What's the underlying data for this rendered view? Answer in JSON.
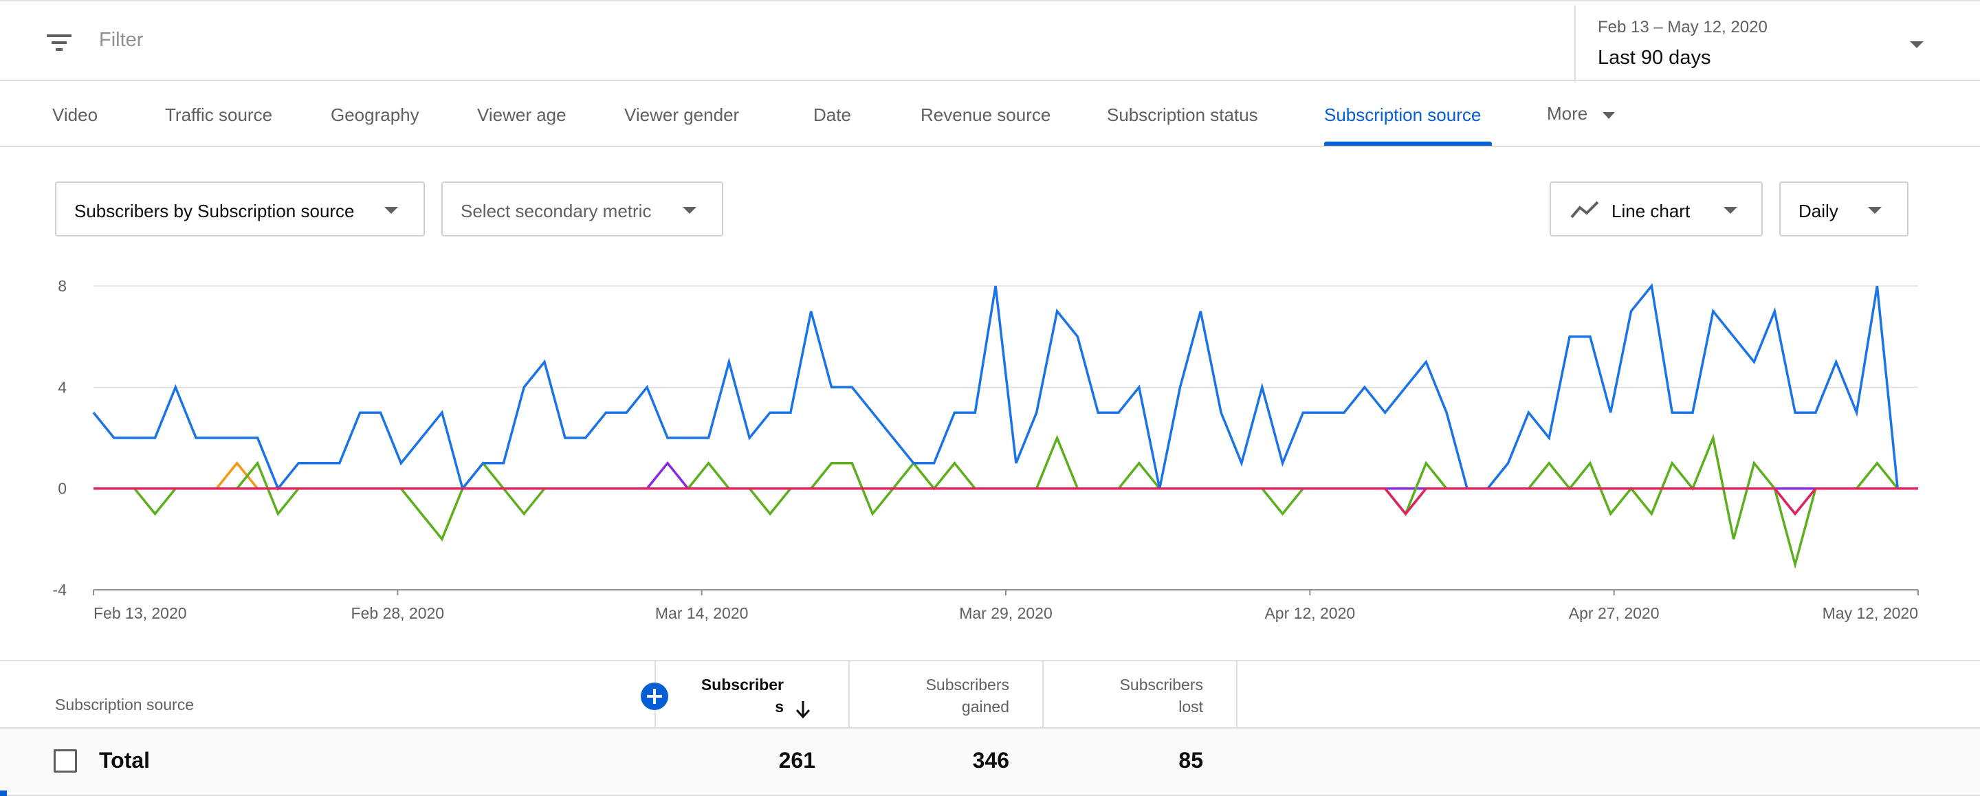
{
  "filter": {
    "placeholder": "Filter",
    "icon": "filter-list-icon"
  },
  "date_selector": {
    "range": "Feb 13 – May 12, 2020",
    "preset": "Last 90 days"
  },
  "tabs": [
    {
      "label": "Video"
    },
    {
      "label": "Traffic source"
    },
    {
      "label": "Geography"
    },
    {
      "label": "Viewer age"
    },
    {
      "label": "Viewer gender"
    },
    {
      "label": "Date"
    },
    {
      "label": "Revenue source"
    },
    {
      "label": "Subscription status"
    },
    {
      "label": "Subscription source",
      "active": true
    },
    {
      "label": "More"
    }
  ],
  "controls": {
    "primary_metric": "Subscribers by Subscription source",
    "secondary_metric": "Select secondary metric",
    "chart_type": "Line chart",
    "interval": "Daily"
  },
  "chart_data": {
    "type": "line",
    "title": "",
    "xlabel": "",
    "ylabel": "",
    "ylim": [
      -4,
      8
    ],
    "yticks": [
      8,
      4,
      0,
      -4
    ],
    "xtick_labels": [
      "Feb 13, 2020",
      "Feb 28, 2020",
      "Mar 14, 2020",
      "Mar 29, 2020",
      "Apr 12, 2020",
      "Apr 27, 2020",
      "May 12, 2020"
    ],
    "grid": true,
    "legend": "none",
    "x_days": 90,
    "series": [
      {
        "color": "#1a73e8",
        "values": [
          3,
          2,
          2,
          2,
          4,
          2,
          2,
          2,
          2,
          0,
          1,
          1,
          1,
          3,
          3,
          1,
          2,
          3,
          0,
          1,
          1,
          4,
          5,
          2,
          2,
          3,
          3,
          4,
          2,
          2,
          2,
          5,
          2,
          3,
          3,
          7,
          4,
          4,
          3,
          2,
          1,
          1,
          3,
          3,
          8,
          1,
          3,
          7,
          6,
          3,
          3,
          4,
          0,
          4,
          7,
          3,
          1,
          4,
          1,
          3,
          3,
          3,
          4,
          3,
          4,
          5,
          3,
          0,
          0,
          1,
          3,
          2,
          6,
          6,
          3,
          7,
          8,
          3,
          3,
          7,
          6,
          5,
          7,
          3,
          3,
          5,
          3,
          8,
          0,
          0
        ]
      },
      {
        "color": "#5cb01e",
        "values": [
          0,
          0,
          0,
          -1,
          0,
          0,
          0,
          0,
          1,
          -1,
          0,
          0,
          0,
          0,
          0,
          0,
          -1,
          -2,
          0,
          1,
          0,
          -1,
          0,
          0,
          0,
          0,
          0,
          0,
          0,
          0,
          1,
          0,
          0,
          -1,
          0,
          0,
          1,
          1,
          -1,
          0,
          1,
          0,
          1,
          0,
          0,
          0,
          0,
          2,
          0,
          0,
          0,
          1,
          0,
          0,
          0,
          0,
          0,
          0,
          -1,
          0,
          0,
          0,
          0,
          0,
          -1,
          1,
          0,
          0,
          0,
          0,
          0,
          1,
          0,
          1,
          -1,
          0,
          -1,
          1,
          0,
          2,
          -2,
          1,
          0,
          -3,
          0,
          0,
          0,
          1,
          0,
          0
        ]
      },
      {
        "color": "#f29a12",
        "values": [
          0,
          0,
          0,
          0,
          0,
          0,
          0,
          1,
          0,
          0,
          0,
          0,
          0,
          0,
          0,
          0,
          0,
          0,
          0,
          0,
          0,
          0,
          0,
          0,
          0,
          0,
          0,
          0,
          0,
          0,
          0,
          0,
          0,
          0,
          0,
          0,
          0,
          0,
          0,
          0,
          0,
          0,
          0,
          0,
          0,
          0,
          0,
          0,
          0,
          0,
          0,
          0,
          0,
          0,
          0,
          0,
          0,
          0,
          0,
          0,
          0,
          0,
          0,
          0,
          0,
          0,
          0,
          0,
          0,
          0,
          0,
          0,
          0,
          0,
          0,
          0,
          0,
          0,
          0,
          0,
          0,
          0,
          0,
          0,
          0,
          0,
          0,
          0,
          0,
          0
        ]
      },
      {
        "color": "#8a2be2",
        "values": [
          0,
          0,
          0,
          0,
          0,
          0,
          0,
          0,
          0,
          0,
          0,
          0,
          0,
          0,
          0,
          0,
          0,
          0,
          0,
          0,
          0,
          0,
          0,
          0,
          0,
          0,
          0,
          0,
          1,
          0,
          0,
          0,
          0,
          0,
          0,
          0,
          0,
          0,
          0,
          0,
          0,
          0,
          0,
          0,
          0,
          0,
          0,
          0,
          0,
          0,
          0,
          0,
          0,
          0,
          0,
          0,
          0,
          0,
          0,
          0,
          0,
          0,
          0,
          0,
          0,
          0,
          0,
          0,
          0,
          0,
          0,
          0,
          0,
          0,
          0,
          0,
          0,
          0,
          0,
          0,
          0,
          0,
          0,
          0,
          0,
          0,
          0,
          0,
          0,
          0
        ]
      },
      {
        "color": "#e0245e",
        "values": [
          0,
          0,
          0,
          0,
          0,
          0,
          0,
          0,
          0,
          0,
          0,
          0,
          0,
          0,
          0,
          0,
          0,
          0,
          0,
          0,
          0,
          0,
          0,
          0,
          0,
          0,
          0,
          0,
          0,
          0,
          0,
          0,
          0,
          0,
          0,
          0,
          0,
          0,
          0,
          0,
          0,
          0,
          0,
          0,
          0,
          0,
          0,
          0,
          0,
          0,
          0,
          0,
          0,
          0,
          0,
          0,
          0,
          0,
          0,
          0,
          0,
          0,
          0,
          0,
          -1,
          0,
          0,
          0,
          0,
          0,
          0,
          0,
          0,
          0,
          0,
          0,
          0,
          0,
          0,
          0,
          0,
          0,
          0,
          -1,
          0,
          0,
          0,
          0,
          0,
          0
        ]
      }
    ]
  },
  "table": {
    "headers": {
      "dimension": "Subscription source",
      "subscribers_line1": "Subscriber",
      "subscribers_line2": "s",
      "gained_line1": "Subscribers",
      "gained_line2": "gained",
      "lost_line1": "Subscribers",
      "lost_line2": "lost"
    },
    "total": {
      "label": "Total",
      "subscribers": "261",
      "gained": "346",
      "lost": "85"
    }
  }
}
